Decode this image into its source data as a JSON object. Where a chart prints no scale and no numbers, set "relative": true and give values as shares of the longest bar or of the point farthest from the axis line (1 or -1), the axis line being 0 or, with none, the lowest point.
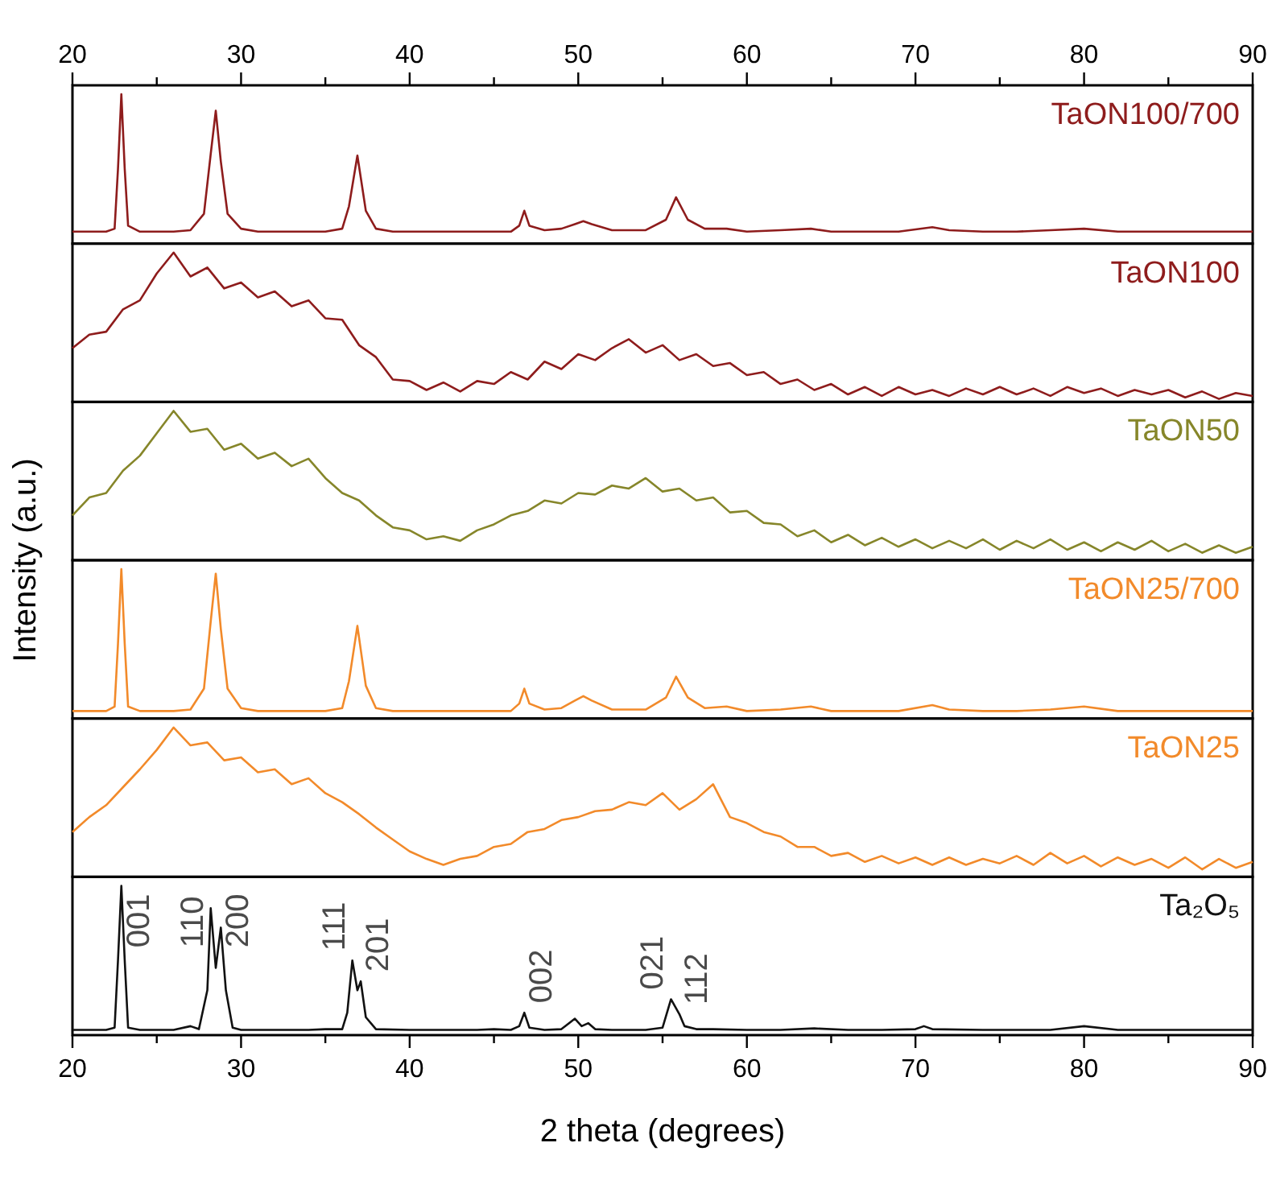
{
  "chart_data": [
    {
      "type": "line",
      "relative": true,
      "tick_labels": "x2",
      "x2lim": [
        20,
        90
      ],
      "x2ticks": [
        20,
        {
          "value": 25,
          "label": null
        },
        30,
        {
          "value": 35,
          "label": null
        },
        40,
        {
          "value": 45,
          "label": null
        },
        50,
        {
          "value": 55,
          "label": null
        },
        60,
        {
          "value": 65,
          "label": null
        },
        70,
        {
          "value": 75,
          "label": null
        },
        80,
        {
          "value": 85,
          "label": null
        },
        90
      ],
      "xlim": [
        20,
        90
      ],
      "x": [
        20,
        21,
        22,
        22.5,
        22.7,
        22.9,
        23.1,
        23.3,
        24,
        25,
        26,
        27,
        27.8,
        28.2,
        28.5,
        28.8,
        29.2,
        30,
        31,
        32,
        33,
        34,
        35,
        36,
        36.4,
        36.9,
        37.4,
        38,
        39,
        40,
        42,
        44,
        46,
        46.5,
        46.8,
        47.1,
        48,
        49,
        49.8,
        50.3,
        50.8,
        52,
        54,
        55.2,
        55.8,
        56.5,
        57.5,
        58.8,
        60,
        62,
        63.8,
        65,
        67,
        69,
        71,
        72,
        74,
        76,
        78,
        80,
        82,
        84,
        86,
        88,
        90
      ],
      "series": [
        {
          "name": "TaON100/700",
          "color": "#8e1c1c",
          "values": [
            0.08,
            0.08,
            0.08,
            0.1,
            0.5,
            1,
            0.5,
            0.12,
            0.08,
            0.08,
            0.08,
            0.09,
            0.2,
            0.6,
            0.89,
            0.55,
            0.2,
            0.1,
            0.08,
            0.08,
            0.08,
            0.08,
            0.08,
            0.1,
            0.25,
            0.59,
            0.22,
            0.1,
            0.08,
            0.08,
            0.08,
            0.08,
            0.08,
            0.12,
            0.22,
            0.12,
            0.09,
            0.1,
            0.13,
            0.15,
            0.13,
            0.09,
            0.09,
            0.16,
            0.31,
            0.16,
            0.1,
            0.1,
            0.08,
            0.09,
            0.1,
            0.08,
            0.08,
            0.08,
            0.11,
            0.09,
            0.08,
            0.08,
            0.09,
            0.1,
            0.08,
            0.08,
            0.08,
            0.08,
            0.08
          ]
        }
      ]
    },
    {
      "type": "line",
      "relative": true,
      "tick_labels": false,
      "xlim": [
        20,
        90
      ],
      "x": [
        20,
        21,
        22,
        23,
        24,
        25,
        26,
        27,
        28,
        29,
        30,
        31,
        32,
        33,
        34,
        35,
        36,
        37,
        38,
        39,
        40,
        41,
        42,
        43,
        44,
        45,
        46,
        47,
        48,
        49,
        50,
        51,
        52,
        53,
        54,
        55,
        56,
        57,
        58,
        59,
        60,
        61,
        62,
        63,
        64,
        65,
        66,
        67,
        68,
        69,
        70,
        71,
        72,
        73,
        74,
        75,
        76,
        77,
        78,
        79,
        80,
        81,
        82,
        83,
        84,
        85,
        86,
        87,
        88,
        89,
        90
      ],
      "series": [
        {
          "name": "TaON100",
          "color": "#8e1c1c",
          "values": [
            0.36,
            0.45,
            0.47,
            0.62,
            0.68,
            0.86,
            1,
            0.84,
            0.9,
            0.76,
            0.8,
            0.7,
            0.74,
            0.64,
            0.68,
            0.56,
            0.55,
            0.38,
            0.3,
            0.15,
            0.14,
            0.08,
            0.13,
            0.07,
            0.14,
            0.12,
            0.2,
            0.15,
            0.27,
            0.22,
            0.32,
            0.28,
            0.36,
            0.42,
            0.33,
            0.38,
            0.28,
            0.32,
            0.24,
            0.26,
            0.18,
            0.2,
            0.12,
            0.15,
            0.08,
            0.12,
            0.05,
            0.1,
            0.04,
            0.1,
            0.05,
            0.08,
            0.04,
            0.09,
            0.05,
            0.1,
            0.05,
            0.09,
            0.04,
            0.1,
            0.06,
            0.09,
            0.04,
            0.08,
            0.05,
            0.08,
            0.03,
            0.07,
            0.02,
            0.06,
            0.04
          ]
        }
      ]
    },
    {
      "type": "line",
      "relative": true,
      "tick_labels": false,
      "xlim": [
        20,
        90
      ],
      "ylabel": "Intensity (a.u.)",
      "x": [
        20,
        21,
        22,
        23,
        24,
        25,
        26,
        27,
        28,
        29,
        30,
        31,
        32,
        33,
        34,
        35,
        36,
        37,
        38,
        39,
        40,
        41,
        42,
        43,
        44,
        45,
        46,
        47,
        48,
        49,
        50,
        51,
        52,
        53,
        54,
        55,
        56,
        57,
        58,
        59,
        60,
        61,
        62,
        63,
        64,
        65,
        66,
        67,
        68,
        69,
        70,
        71,
        72,
        73,
        74,
        75,
        76,
        77,
        78,
        79,
        80,
        81,
        82,
        83,
        84,
        85,
        86,
        87,
        88,
        89,
        90
      ],
      "series": [
        {
          "name": "TaON50",
          "color": "#86862a",
          "values": [
            0.3,
            0.42,
            0.45,
            0.6,
            0.7,
            0.85,
            1,
            0.86,
            0.88,
            0.74,
            0.78,
            0.68,
            0.72,
            0.63,
            0.68,
            0.55,
            0.45,
            0.4,
            0.3,
            0.22,
            0.2,
            0.14,
            0.16,
            0.13,
            0.2,
            0.24,
            0.3,
            0.33,
            0.4,
            0.38,
            0.45,
            0.44,
            0.5,
            0.48,
            0.55,
            0.46,
            0.48,
            0.4,
            0.42,
            0.32,
            0.33,
            0.25,
            0.24,
            0.16,
            0.2,
            0.12,
            0.17,
            0.1,
            0.15,
            0.09,
            0.14,
            0.08,
            0.13,
            0.08,
            0.14,
            0.07,
            0.13,
            0.08,
            0.14,
            0.07,
            0.12,
            0.06,
            0.12,
            0.07,
            0.13,
            0.06,
            0.11,
            0.05,
            0.1,
            0.05,
            0.09
          ]
        }
      ]
    },
    {
      "type": "line",
      "relative": true,
      "tick_labels": false,
      "xlim": [
        20,
        90
      ],
      "x": [
        20,
        21,
        22,
        22.5,
        22.7,
        22.9,
        23.1,
        23.3,
        24,
        25,
        26,
        27,
        27.8,
        28.2,
        28.5,
        28.8,
        29.2,
        30,
        31,
        32,
        33,
        34,
        35,
        36,
        36.4,
        36.9,
        37.4,
        38,
        39,
        40,
        42,
        44,
        46,
        46.5,
        46.8,
        47.1,
        48,
        49,
        49.8,
        50.3,
        50.8,
        52,
        54,
        55.2,
        55.8,
        56.5,
        57.5,
        58.8,
        60,
        62,
        63.8,
        65,
        67,
        69,
        71,
        72,
        74,
        76,
        78,
        80,
        82,
        84,
        86,
        88,
        90
      ],
      "series": [
        {
          "name": "TaON25/700",
          "color": "#f28a2a",
          "values": [
            0.05,
            0.05,
            0.05,
            0.08,
            0.5,
            1,
            0.5,
            0.08,
            0.05,
            0.05,
            0.05,
            0.06,
            0.2,
            0.65,
            0.97,
            0.6,
            0.2,
            0.07,
            0.05,
            0.05,
            0.05,
            0.05,
            0.05,
            0.07,
            0.25,
            0.62,
            0.22,
            0.07,
            0.05,
            0.05,
            0.05,
            0.05,
            0.05,
            0.1,
            0.2,
            0.1,
            0.06,
            0.07,
            0.12,
            0.15,
            0.12,
            0.06,
            0.06,
            0.14,
            0.28,
            0.14,
            0.07,
            0.08,
            0.05,
            0.06,
            0.08,
            0.05,
            0.05,
            0.05,
            0.09,
            0.06,
            0.05,
            0.05,
            0.06,
            0.08,
            0.05,
            0.05,
            0.05,
            0.05,
            0.05
          ]
        }
      ]
    },
    {
      "type": "line",
      "relative": true,
      "tick_labels": false,
      "xlim": [
        20,
        90
      ],
      "x": [
        20,
        21,
        22,
        23,
        24,
        25,
        26,
        27,
        28,
        29,
        30,
        31,
        32,
        33,
        34,
        35,
        36,
        37,
        38,
        39,
        40,
        41,
        42,
        43,
        44,
        45,
        46,
        47,
        48,
        49,
        50,
        51,
        52,
        53,
        54,
        55,
        56,
        57,
        58,
        59,
        60,
        61,
        62,
        63,
        64,
        65,
        66,
        67,
        68,
        69,
        70,
        71,
        72,
        73,
        74,
        75,
        76,
        77,
        78,
        79,
        80,
        81,
        82,
        83,
        84,
        85,
        86,
        87,
        88,
        89,
        90
      ],
      "series": [
        {
          "name": "TaON25",
          "color": "#f28a2a",
          "values": [
            0.3,
            0.4,
            0.48,
            0.6,
            0.72,
            0.85,
            1,
            0.88,
            0.9,
            0.78,
            0.8,
            0.7,
            0.72,
            0.62,
            0.66,
            0.56,
            0.5,
            0.42,
            0.33,
            0.25,
            0.17,
            0.12,
            0.08,
            0.12,
            0.14,
            0.2,
            0.22,
            0.3,
            0.32,
            0.38,
            0.4,
            0.44,
            0.45,
            0.5,
            0.48,
            0.56,
            0.45,
            0.52,
            0.62,
            0.4,
            0.36,
            0.3,
            0.27,
            0.2,
            0.2,
            0.14,
            0.16,
            0.1,
            0.14,
            0.09,
            0.13,
            0.08,
            0.13,
            0.08,
            0.12,
            0.09,
            0.14,
            0.08,
            0.16,
            0.09,
            0.14,
            0.07,
            0.13,
            0.08,
            0.12,
            0.06,
            0.13,
            0.05,
            0.12,
            0.06,
            0.1
          ]
        }
      ]
    },
    {
      "type": "line",
      "relative": true,
      "xlim": [
        20,
        90
      ],
      "xticks": [
        20,
        {
          "value": 25,
          "label": null
        },
        30,
        {
          "value": 35,
          "label": null
        },
        40,
        {
          "value": 45,
          "label": null
        },
        50,
        {
          "value": 55,
          "label": null
        },
        60,
        {
          "value": 65,
          "label": null
        },
        70,
        {
          "value": 75,
          "label": null
        },
        80,
        {
          "value": 85,
          "label": null
        },
        90
      ],
      "xlabel": "2 theta (degrees)",
      "x": [
        20,
        21,
        22,
        22.5,
        22.7,
        22.9,
        23.1,
        23.3,
        24,
        25,
        26,
        27,
        27.5,
        28,
        28.2,
        28.5,
        28.8,
        29.1,
        29.5,
        30,
        32,
        34,
        35,
        36,
        36.3,
        36.6,
        36.9,
        37.1,
        37.4,
        38,
        40,
        42,
        44,
        45,
        46,
        46.5,
        46.8,
        47.1,
        48,
        49,
        49.8,
        50.2,
        50.6,
        51,
        52,
        54,
        55,
        55.5,
        56,
        56.3,
        57,
        58,
        60,
        62,
        64,
        66,
        68,
        70,
        70.5,
        71,
        74,
        76,
        78,
        80,
        82,
        84,
        86,
        88,
        90
      ],
      "series": [
        {
          "name": "Ta₂O₅",
          "color": "#111111",
          "values": [
            0.035,
            0.035,
            0.035,
            0.05,
            0.5,
            1,
            0.5,
            0.05,
            0.035,
            0.035,
            0.035,
            0.06,
            0.04,
            0.3,
            0.85,
            0.45,
            0.72,
            0.3,
            0.05,
            0.035,
            0.035,
            0.035,
            0.04,
            0.04,
            0.15,
            0.5,
            0.3,
            0.36,
            0.12,
            0.04,
            0.035,
            0.035,
            0.035,
            0.04,
            0.035,
            0.06,
            0.15,
            0.05,
            0.035,
            0.04,
            0.11,
            0.06,
            0.08,
            0.04,
            0.035,
            0.035,
            0.05,
            0.24,
            0.14,
            0.06,
            0.04,
            0.04,
            0.035,
            0.035,
            0.045,
            0.035,
            0.035,
            0.04,
            0.06,
            0.04,
            0.035,
            0.035,
            0.035,
            0.06,
            0.035,
            0.035,
            0.035,
            0.035,
            0.035
          ]
        }
      ],
      "annotations": [
        {
          "text": "001",
          "x": 22.9,
          "y": 1
        },
        {
          "text": "110",
          "x": 28.2,
          "y": 0.85
        },
        {
          "text": "200",
          "x": 28.8,
          "y": 0.72
        },
        {
          "text": "111",
          "x": 36.6,
          "y": 0.5
        },
        {
          "text": "201",
          "x": 37.1,
          "y": 0.36
        },
        {
          "text": "002",
          "x": 46.8,
          "y": 0.15
        },
        {
          "text": "021",
          "x": 55.5,
          "y": 0.24
        },
        {
          "text": "112",
          "x": 56,
          "y": 0.14
        }
      ]
    }
  ]
}
